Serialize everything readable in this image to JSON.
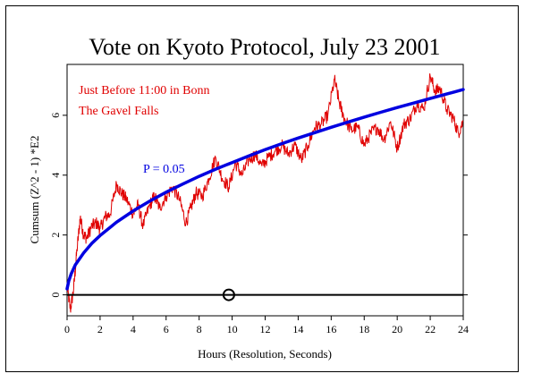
{
  "chart_data": {
    "type": "line",
    "title": "Vote on Kyoto Protocol, July 23 2001",
    "xlabel": "Hours (Resolution, Seconds)",
    "ylabel": "Cumsum (Z^2 - 1) *E2",
    "xlim": [
      0,
      24
    ],
    "ylim": [
      -0.7,
      7.7
    ],
    "x_ticks": [
      "0",
      "2",
      "4",
      "6",
      "8",
      "10",
      "12",
      "14",
      "16",
      "18",
      "20",
      "22",
      "24"
    ],
    "y_ticks": [
      "0",
      "2",
      "4",
      "6"
    ],
    "annotations": [
      {
        "text": "Just Before 11:00 in Bonn",
        "color": "#e00000"
      },
      {
        "text": "The Gavel Falls",
        "color": "#e00000"
      },
      {
        "text": "P = 0.05",
        "color": "#0000e0"
      }
    ],
    "marker": {
      "shape": "circle",
      "x": 9.8,
      "y": 0
    },
    "series": [
      {
        "color": "#e00000",
        "style": "noisy",
        "x": [
          0,
          0.2,
          0.4,
          0.6,
          0.8,
          1.0,
          1.2,
          1.5,
          1.8,
          2.0,
          2.3,
          2.6,
          3.0,
          3.3,
          3.6,
          4.0,
          4.3,
          4.6,
          5.0,
          5.3,
          5.6,
          6.0,
          6.4,
          6.8,
          7.2,
          7.5,
          7.8,
          8.2,
          8.6,
          9.0,
          9.4,
          9.8,
          10.2,
          10.6,
          11.0,
          11.4,
          11.8,
          12.2,
          12.6,
          13.0,
          13.4,
          13.8,
          14.2,
          14.6,
          15.0,
          15.4,
          15.8,
          16.2,
          16.5,
          16.8,
          17.2,
          17.6,
          18.0,
          18.4,
          18.8,
          19.2,
          19.6,
          20.0,
          20.4,
          20.8,
          21.2,
          21.6,
          22.0,
          22.3,
          22.6,
          23.0,
          23.4,
          23.7,
          24.0
        ],
        "y": [
          0.3,
          -0.5,
          0.2,
          1.5,
          2.6,
          2.0,
          1.9,
          2.3,
          2.4,
          2.2,
          2.6,
          2.7,
          3.7,
          3.4,
          3.2,
          2.7,
          3.0,
          2.3,
          3.0,
          3.3,
          2.9,
          3.3,
          3.6,
          3.2,
          2.4,
          2.9,
          3.4,
          3.3,
          3.9,
          4.6,
          3.9,
          3.6,
          4.4,
          4.0,
          4.5,
          4.7,
          4.3,
          4.6,
          4.8,
          5.0,
          4.7,
          5.0,
          4.5,
          5.0,
          5.6,
          5.7,
          6.0,
          7.2,
          6.4,
          5.9,
          5.5,
          5.6,
          5.0,
          5.4,
          5.6,
          5.2,
          5.8,
          4.9,
          5.7,
          5.9,
          6.4,
          6.2,
          7.3,
          6.8,
          6.9,
          6.2,
          5.9,
          5.4,
          5.8
        ]
      },
      {
        "name": "P = 0.05",
        "color": "#0000e0",
        "style": "smooth",
        "x": [
          0,
          0.1,
          0.25,
          0.5,
          1,
          1.5,
          2,
          3,
          4,
          5,
          6,
          7,
          8,
          9,
          10,
          11,
          12,
          13,
          14,
          15,
          16,
          17,
          18,
          19,
          20,
          21,
          22,
          23,
          24
        ],
        "y": [
          0.2,
          0.45,
          0.7,
          1.0,
          1.4,
          1.72,
          1.98,
          2.43,
          2.8,
          3.13,
          3.43,
          3.7,
          3.96,
          4.2,
          4.42,
          4.64,
          4.85,
          5.05,
          5.24,
          5.42,
          5.6,
          5.77,
          5.94,
          6.1,
          6.26,
          6.41,
          6.56,
          6.71,
          6.86
        ]
      },
      {
        "color": "#000000",
        "style": "baseline",
        "x": [
          0,
          24
        ],
        "y": [
          0,
          0
        ]
      }
    ]
  }
}
